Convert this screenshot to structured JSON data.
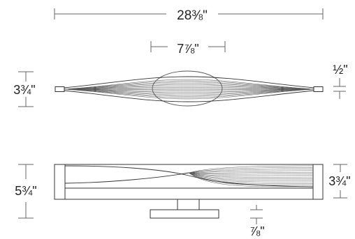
{
  "dimensions": {
    "overall_width": "28⅜\"",
    "canopy_width": "7⅞\"",
    "top_view_height": "3¾\"",
    "end_cap_thickness": "½\"",
    "side_view_overall_height": "5¾\"",
    "side_view_body_height": "3¾\"",
    "mount_depth": "⅞\""
  },
  "colors": {
    "line": "#333333",
    "wave": "#555555",
    "dim": "#666666",
    "text": "#222222"
  }
}
